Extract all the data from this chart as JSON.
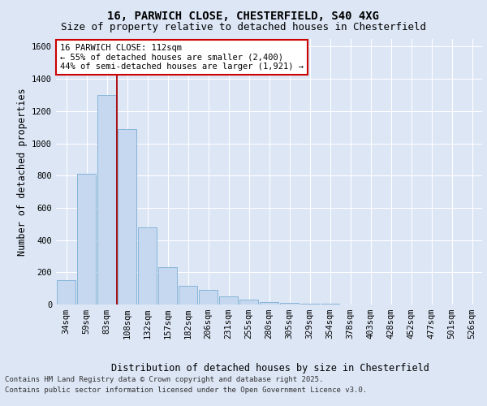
{
  "title_line1": "16, PARWICH CLOSE, CHESTERFIELD, S40 4XG",
  "title_line2": "Size of property relative to detached houses in Chesterfield",
  "xlabel": "Distribution of detached houses by size in Chesterfield",
  "ylabel": "Number of detached properties",
  "categories": [
    "34sqm",
    "59sqm",
    "83sqm",
    "108sqm",
    "132sqm",
    "157sqm",
    "182sqm",
    "206sqm",
    "231sqm",
    "255sqm",
    "280sqm",
    "305sqm",
    "329sqm",
    "354sqm",
    "378sqm",
    "403sqm",
    "428sqm",
    "452sqm",
    "477sqm",
    "501sqm",
    "526sqm"
  ],
  "values": [
    150,
    810,
    1300,
    1090,
    480,
    230,
    115,
    90,
    50,
    30,
    15,
    10,
    5,
    3,
    2,
    1,
    1,
    1,
    1,
    1,
    1
  ],
  "bar_color": "#c5d8ef",
  "bar_edge_color": "#7bafd4",
  "vline_x": 3.0,
  "vline_color": "#aa0000",
  "annotation_text": "16 PARWICH CLOSE: 112sqm\n← 55% of detached houses are smaller (2,400)\n44% of semi-detached houses are larger (1,921) →",
  "annotation_box_color": "#ffffff",
  "annotation_box_edge": "#cc0000",
  "ylim": [
    0,
    1650
  ],
  "yticks": [
    0,
    200,
    400,
    600,
    800,
    1000,
    1200,
    1400,
    1600
  ],
  "background_color": "#dce6f5",
  "plot_background": "#dce6f5",
  "footer_line1": "Contains HM Land Registry data © Crown copyright and database right 2025.",
  "footer_line2": "Contains public sector information licensed under the Open Government Licence v3.0.",
  "title_fontsize": 10,
  "subtitle_fontsize": 9,
  "axis_label_fontsize": 8.5,
  "tick_fontsize": 7.5,
  "annotation_fontsize": 7.5,
  "footer_fontsize": 6.5
}
